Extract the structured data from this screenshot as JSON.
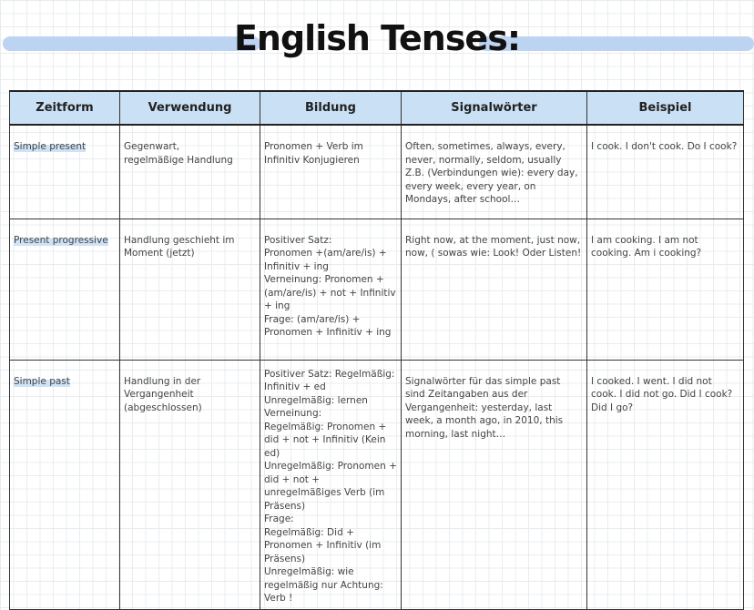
{
  "title": "English Tenses:",
  "accent_color": "#bcd3f2",
  "header_color": "#c9e0f5",
  "table": {
    "headers": [
      "Zeitform",
      "Verwendung",
      "Bildung",
      "Signalwörter",
      "Beispiel"
    ],
    "rows": [
      {
        "tense": "Simple present",
        "usage": "Gegenwart,\nregelmäßige Handlung",
        "formation": "Pronomen + Verb im\nInfinitiv Konjugieren",
        "signal": "Often, sometimes, always, every, never, normally, seldom, usually Z.B. (Verbindungen wie): every day, every week, every year, on Mondays, after school…",
        "example": "I cook. I don't cook. Do I cook?"
      },
      {
        "tense": "Present progressive",
        "usage": "Handlung geschieht im Moment (jetzt)",
        "formation": "Positiver Satz:\nPronomen +(am/are/is) + Infinitiv + ing\nVerneinung: Pronomen + (am/are/is) + not + Infinitiv + ing\nFrage: (am/are/is) + Pronomen + Infinitiv + ing",
        "signal": "Right now, at the moment, just now, now, ( sowas wie: Look! Oder Listen!",
        "example": "I am cooking. I am not cooking. Am i cooking?"
      },
      {
        "tense": "Simple past",
        "usage": "Handlung in der Vergangenheit (abgeschlossen)",
        "formation": "Positiver Satz: Regelmäßig: Infinitiv + ed\nUnregelmäßig: lernen\nVerneinung:\nRegelmäßig: Pronomen + did + not + Infinitiv (Kein ed)\nUnregelmäßig: Pronomen + did + not + unregelmäßiges Verb (im Präsens)\nFrage:\nRegelmäßig: Did + Pronomen + Infinitiv (im Präsens)\nUnregelmäßig: wie regelmäßig nur Achtung: Verb !",
        "signal": "Signalwörter für das simple past sind Zeitangaben aus der Vergangenheit: yesterday, last week, a month ago, in 2010, this morning, last night…",
        "example": "I cooked. I went. I did not cook. I did not go. Did I cook? Did I go?"
      }
    ]
  }
}
